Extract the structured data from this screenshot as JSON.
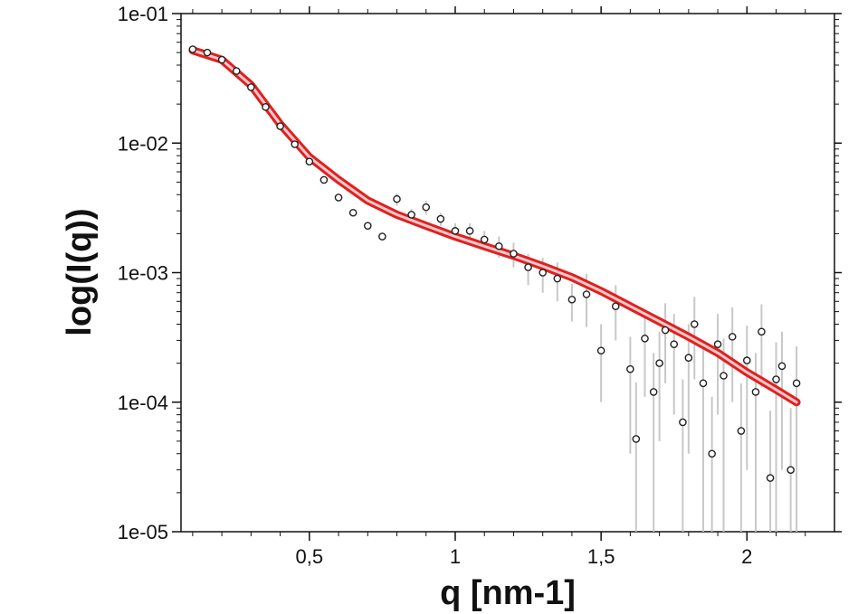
{
  "chart_data": {
    "type": "scatter",
    "xlabel": "q [nm-1]",
    "ylabel": "log(I(q))",
    "xlim": [
      0.06,
      2.3
    ],
    "ylim": [
      1e-05,
      0.1
    ],
    "y_scale": "log",
    "grid": false,
    "x_ticks": [
      {
        "value": 0.5,
        "label": "0,5"
      },
      {
        "value": 1,
        "label": "1"
      },
      {
        "value": 1.5,
        "label": "1,5"
      },
      {
        "value": 2,
        "label": "2"
      }
    ],
    "y_ticks": [
      {
        "value": 0.1,
        "label": "1e-01"
      },
      {
        "value": 0.01,
        "label": "1e-02"
      },
      {
        "value": 0.001,
        "label": "1e-03"
      },
      {
        "value": 0.0001,
        "label": "1e-04"
      },
      {
        "value": 1e-05,
        "label": "1e-05"
      }
    ],
    "series": [
      {
        "kind": "data_points_with_error_bars",
        "color": "#222222",
        "error_color": "#c8c8c8",
        "x": [
          0.1,
          0.15,
          0.2,
          0.25,
          0.3,
          0.35,
          0.4,
          0.45,
          0.5,
          0.55,
          0.6,
          0.65,
          0.7,
          0.75,
          0.8,
          0.85,
          0.9,
          0.95,
          1.0,
          1.05,
          1.1,
          1.15,
          1.2,
          1.25,
          1.3,
          1.35,
          1.4,
          1.45,
          1.5,
          1.55,
          1.6,
          1.62,
          1.65,
          1.68,
          1.7,
          1.72,
          1.75,
          1.78,
          1.8,
          1.82,
          1.85,
          1.88,
          1.9,
          1.92,
          1.95,
          1.98,
          2.0,
          2.03,
          2.05,
          2.08,
          2.1,
          2.12,
          2.15,
          2.17
        ],
        "y": [
          0.053,
          0.05,
          0.044,
          0.036,
          0.027,
          0.019,
          0.0135,
          0.0098,
          0.0072,
          0.0052,
          0.0038,
          0.0029,
          0.0023,
          0.0019,
          0.0037,
          0.0028,
          0.0032,
          0.0026,
          0.0021,
          0.0021,
          0.0018,
          0.0016,
          0.0014,
          0.0011,
          0.001,
          0.0009,
          0.00062,
          0.00068,
          0.00025,
          0.00055,
          0.00018,
          5.2e-05,
          0.00031,
          0.00012,
          0.0002,
          0.00036,
          0.00028,
          7e-05,
          0.00022,
          0.0004,
          0.00014,
          4e-05,
          0.00028,
          0.00016,
          0.00032,
          6e-05,
          0.00021,
          0.00012,
          0.00035,
          2.6e-05,
          0.00015,
          0.00019,
          3e-05,
          0.00014
        ],
        "y_err": [
          0.0005,
          0.0004,
          0.0004,
          0.0003,
          0.0002,
          0.00015,
          0.0001,
          8e-05,
          6e-05,
          4e-05,
          3e-05,
          3e-05,
          2e-05,
          2e-05,
          0.0004,
          0.0003,
          0.0004,
          0.0003,
          0.0003,
          0.0003,
          0.0003,
          0.0003,
          0.0003,
          0.0003,
          0.0003,
          0.0003,
          0.0002,
          0.0003,
          0.00015,
          0.00025,
          0.00014,
          9e-05,
          0.0002,
          0.00012,
          0.00015,
          0.00022,
          0.0002,
          8e-05,
          0.00018,
          0.00025,
          0.00013,
          7e-05,
          0.0002,
          0.00015,
          0.00022,
          8e-05,
          0.00018,
          0.00012,
          0.00022,
          6e-05,
          0.00014,
          0.00016,
          6e-05,
          0.00013
        ]
      },
      {
        "kind": "fit_curve",
        "color": "#e02020",
        "x": [
          0.1,
          0.2,
          0.3,
          0.4,
          0.5,
          0.6,
          0.7,
          0.8,
          0.9,
          1.0,
          1.1,
          1.2,
          1.3,
          1.4,
          1.5,
          1.6,
          1.7,
          1.8,
          1.9,
          2.0,
          2.1,
          2.17
        ],
        "y": [
          0.052,
          0.044,
          0.028,
          0.014,
          0.0078,
          0.0052,
          0.0036,
          0.0028,
          0.0023,
          0.0019,
          0.0016,
          0.00135,
          0.00112,
          0.00092,
          0.00072,
          0.00055,
          0.00042,
          0.00032,
          0.00024,
          0.00017,
          0.000125,
          0.0001
        ]
      }
    ]
  }
}
